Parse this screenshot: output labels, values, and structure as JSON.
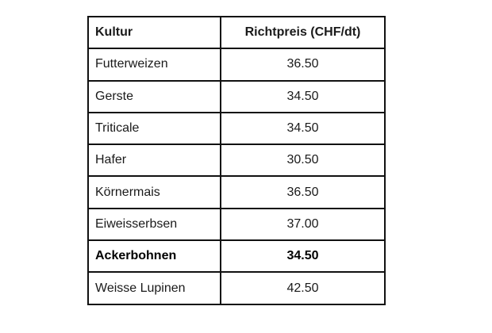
{
  "table": {
    "headers": [
      "Kultur",
      "Richtpreis (CHF/dt)"
    ],
    "rows": [
      {
        "kultur": "Futterweizen",
        "preis": "36.50"
      },
      {
        "kultur": "Gerste",
        "preis": "34.50"
      },
      {
        "kultur": "Triticale",
        "preis": "34.50"
      },
      {
        "kultur": "Hafer",
        "preis": "30.50"
      },
      {
        "kultur": "Körnermais",
        "preis": "36.50"
      },
      {
        "kultur": "Eiweisserbsen",
        "preis": "37.00"
      },
      {
        "kultur": "Ackerbohnen",
        "preis": "34.50"
      },
      {
        "kultur": "Weisse Lupinen",
        "preis": "42.50"
      }
    ]
  }
}
